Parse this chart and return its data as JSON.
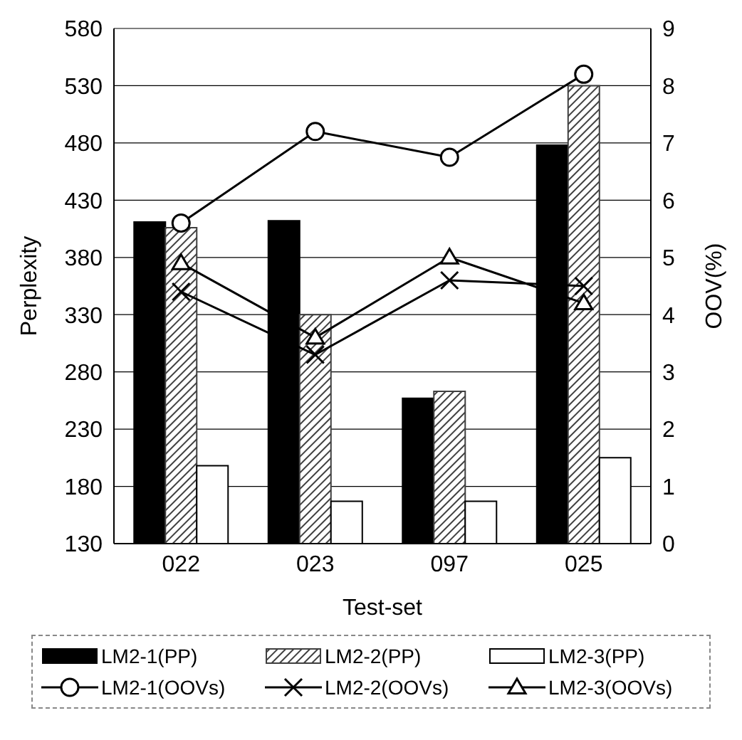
{
  "chart_data": {
    "type": "bar",
    "xlabel": "Test-set",
    "ylabel": "Perplexity",
    "y2label": "OOV(%)",
    "categories": [
      "022",
      "023",
      "097",
      "025"
    ],
    "series": [
      {
        "name": "LM2-1(PP)",
        "color": "#000000",
        "values": [
          411,
          412,
          257,
          478
        ]
      },
      {
        "name": "LM2-2(PP)",
        "color": "#404040",
        "values": [
          406,
          330,
          263,
          530
        ]
      },
      {
        "name": "LM2-3(PP)",
        "color": "#ffffff",
        "values": [
          198,
          167,
          167,
          205
        ]
      },
      {
        "name": "LM2-1(OOVs)",
        "type": "line",
        "axis": "y2",
        "marker": "circle",
        "color": "#000000",
        "values": [
          5.6,
          7.2,
          6.75,
          8.2
        ]
      },
      {
        "name": "LM2-2(OOVs)",
        "type": "line",
        "axis": "y2",
        "marker": "cross",
        "color": "#000000",
        "values": [
          4.4,
          3.3,
          4.6,
          4.5
        ]
      },
      {
        "name": "LM2-3(OOVs)",
        "type": "line",
        "axis": "y2",
        "marker": "triangle",
        "color": "#000000",
        "values": [
          4.9,
          3.6,
          5.0,
          4.2
        ]
      }
    ],
    "ylim": [
      130,
      580
    ],
    "yticks": [
      130,
      180,
      230,
      280,
      330,
      380,
      430,
      480,
      530,
      580
    ],
    "y2lim": [
      0,
      9
    ],
    "y2ticks": [
      0,
      1,
      2,
      3,
      4,
      5,
      6,
      7,
      8,
      9
    ],
    "grid": "y",
    "legend": "bottom"
  }
}
